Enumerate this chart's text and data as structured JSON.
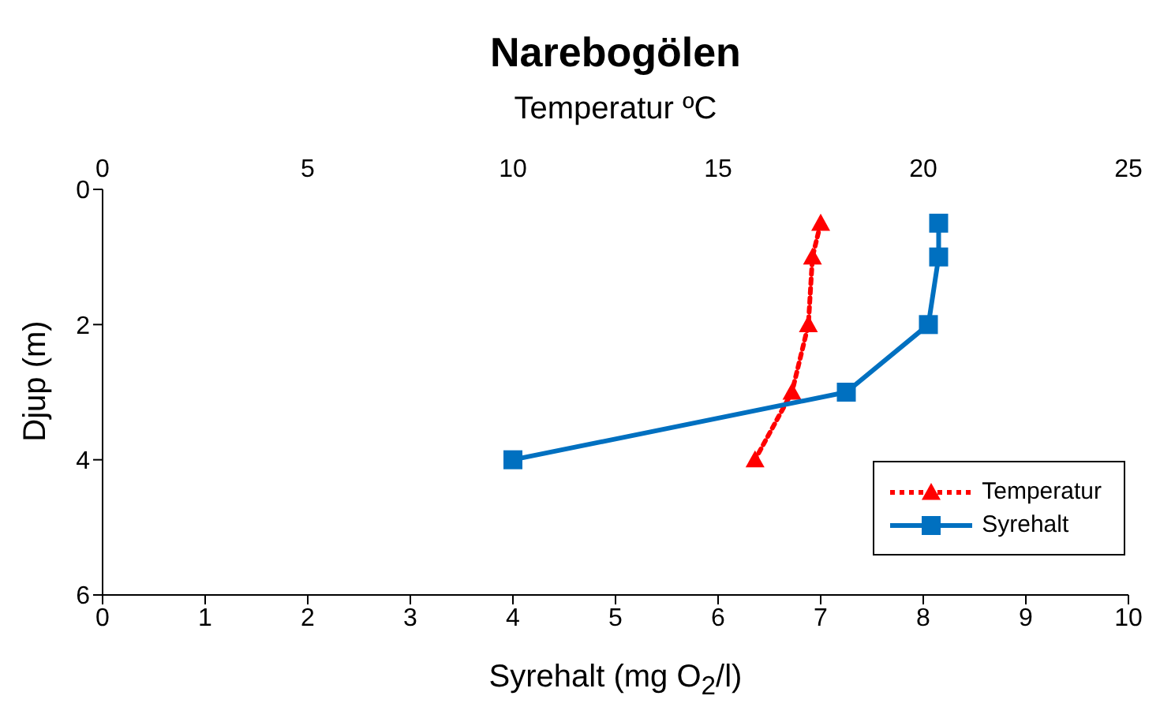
{
  "chart_data": {
    "type": "line",
    "title": "Narebogölen",
    "x2label": "Temperatur ºC",
    "xlabel": "Syrehalt (mg O$_{2}$/l)",
    "ylabel": "Djup (m)",
    "xlim": [
      0,
      10
    ],
    "xticks": [
      0,
      1,
      2,
      3,
      4,
      5,
      6,
      7,
      8,
      9,
      10
    ],
    "x2lim": [
      0,
      25
    ],
    "x2ticks": [
      0,
      5,
      10,
      15,
      20,
      25
    ],
    "ylim": [
      6,
      0
    ],
    "yticks": [
      0,
      2,
      4,
      6
    ],
    "legend": "bottom right",
    "series": [
      {
        "name": "Temperatur",
        "axis": "x2",
        "color": "#ff0000",
        "marker": "triangle",
        "line_style": "dotted",
        "x": [
          17.5,
          17.3,
          17.2,
          16.8,
          15.9
        ],
        "values": [
          0.5,
          1,
          2,
          3,
          4
        ]
      },
      {
        "name": "Syrehalt",
        "color": "#0070c0",
        "marker": "square",
        "line_style": "solid",
        "x": [
          8.15,
          8.15,
          8.05,
          7.25,
          4.0
        ],
        "values": [
          0.5,
          1,
          2,
          3,
          4
        ]
      }
    ]
  }
}
